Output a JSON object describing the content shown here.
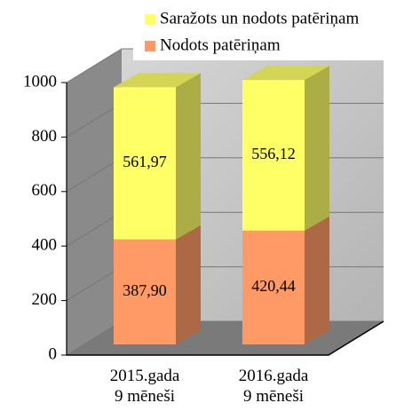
{
  "chart_data": {
    "type": "bar",
    "stacked": true,
    "categories": [
      "2015.gada\n9 mēneši",
      "2016.gada\n9 mēneši"
    ],
    "series": [
      {
        "name": "Nodots patēriņam",
        "color": "#ff9966",
        "values": [
          387.9,
          420.44
        ],
        "value_labels": [
          "387,90",
          "420,44"
        ]
      },
      {
        "name": "Saražots un nodots patēriņam",
        "color": "#ffff66",
        "values": [
          561.97,
          556.12
        ],
        "value_labels": [
          "561,97",
          "556,12"
        ]
      }
    ],
    "ylim": [
      0,
      1000
    ],
    "yticks": [
      0,
      200,
      400,
      600,
      800,
      1000
    ],
    "grid": true
  }
}
